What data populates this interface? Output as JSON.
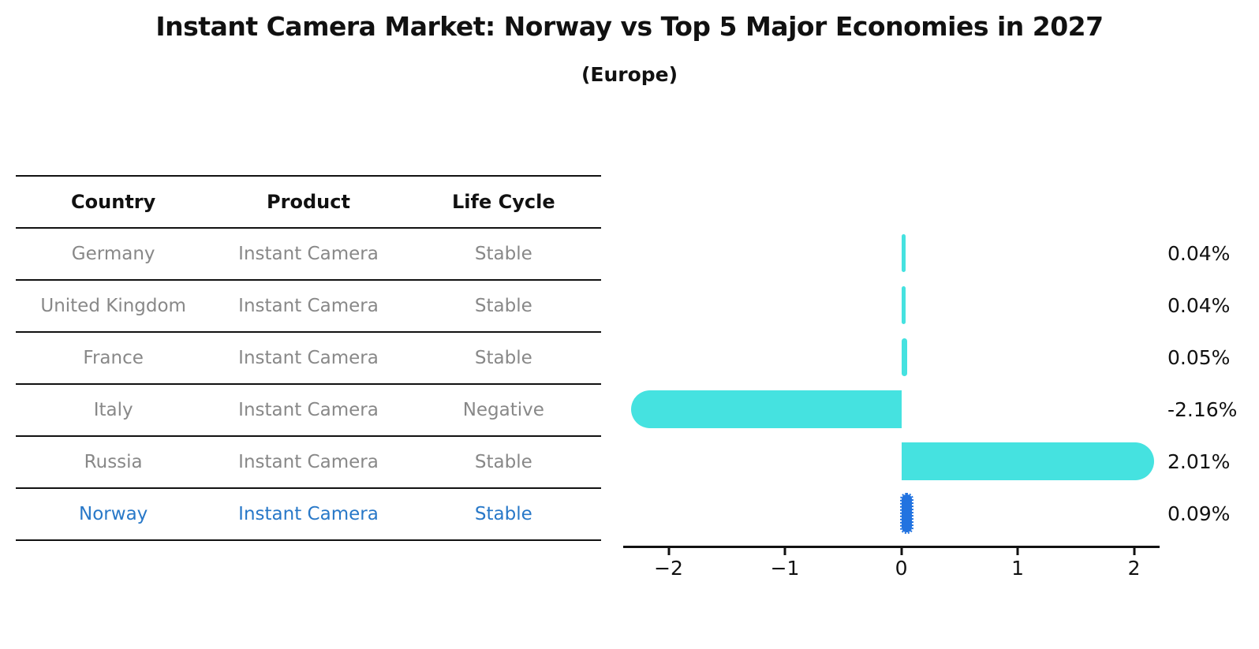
{
  "header": {
    "title": "Instant Camera Market: Norway vs Top 5 Major Economies in 2027",
    "subtitle": "(Europe)"
  },
  "table": {
    "headers": [
      "Country",
      "Product",
      "Life Cycle"
    ],
    "rows": [
      {
        "country": "Germany",
        "product": "Instant Camera",
        "life_cycle": "Stable",
        "highlighted": false
      },
      {
        "country": "United Kingdom",
        "product": "Instant Camera",
        "life_cycle": "Stable",
        "highlighted": false
      },
      {
        "country": "France",
        "product": "Instant Camera",
        "life_cycle": "Stable",
        "highlighted": false
      },
      {
        "country": "Italy",
        "product": "Instant Camera",
        "life_cycle": "Negative",
        "highlighted": false
      },
      {
        "country": "Russia",
        "product": "Instant Camera",
        "life_cycle": "Stable",
        "highlighted": false
      },
      {
        "country": "Norway",
        "product": "Instant Camera",
        "life_cycle": "Stable",
        "highlighted": true
      }
    ]
  },
  "chart_data": {
    "type": "bar",
    "orientation": "horizontal",
    "title": "Instant Camera Market: Norway vs Top 5 Major Economies in 2027 (Europe)",
    "categories": [
      "Germany",
      "United Kingdom",
      "France",
      "Italy",
      "Russia",
      "Norway"
    ],
    "values": [
      0.04,
      0.04,
      0.05,
      -2.16,
      2.01,
      0.09
    ],
    "value_labels": [
      "0.04%",
      "0.04%",
      "0.05%",
      "-2.16%",
      "2.01%",
      "0.09%"
    ],
    "unit": "percent",
    "xlabel": "",
    "ylabel": "",
    "xticks": [
      -2,
      -1,
      0,
      1,
      2
    ],
    "xtick_labels": [
      "−2",
      "−1",
      "0",
      "1",
      "2"
    ],
    "xlim": [
      -2.39,
      2.22
    ],
    "grid": false,
    "legend": false,
    "default_color": "#45E2E0",
    "highlight_color": "#2273E0",
    "bar_colors": [
      "#45E2E0",
      "#45E2E0",
      "#45E2E0",
      "#45E2E0",
      "#45E2E0",
      "#2273E0"
    ]
  },
  "text_colors": {
    "title": "#111111",
    "muted_text": "#888888",
    "highlight_text": "#2878C8"
  }
}
